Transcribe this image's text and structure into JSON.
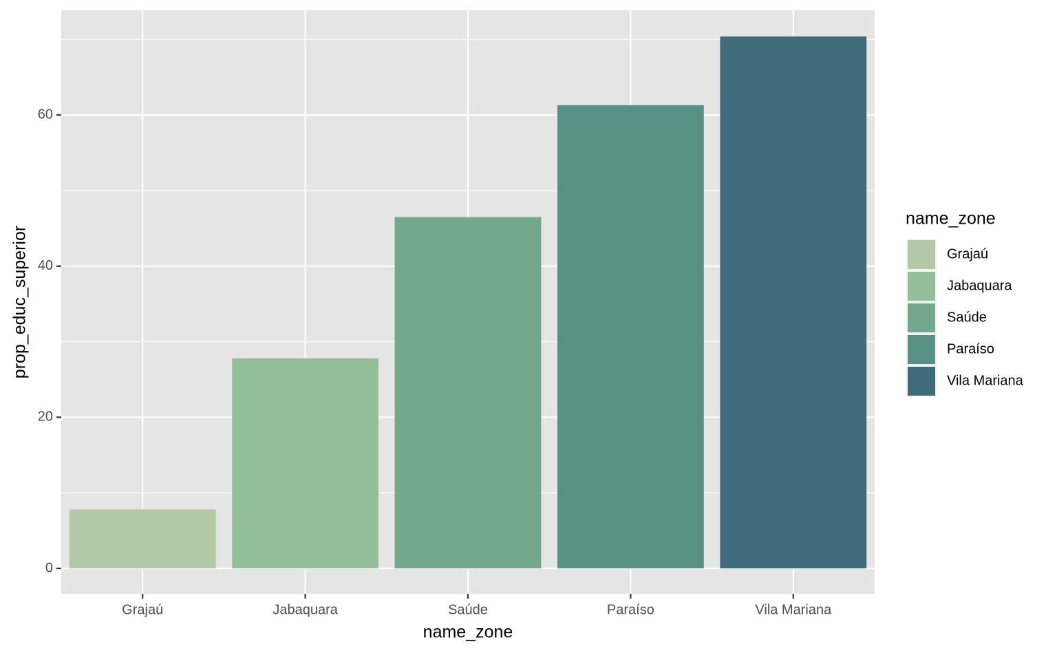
{
  "chart_data": {
    "type": "bar",
    "xlabel": "name_zone",
    "ylabel": "prop_educ_superior",
    "legend_title": "name_zone",
    "categories": [
      "Grajaú",
      "Jabaquara",
      "Saúde",
      "Paraíso",
      "Vila Mariana"
    ],
    "values": [
      7.8,
      27.8,
      46.5,
      61.3,
      70.4
    ],
    "colors": [
      "#b3c8a6",
      "#93bf98",
      "#74a88d",
      "#579185",
      "#3f6b7a"
    ],
    "ylim": [
      -3.37,
      73.86
    ],
    "yticks": [
      0,
      20,
      40,
      60
    ],
    "grid": true,
    "legend": "right"
  }
}
